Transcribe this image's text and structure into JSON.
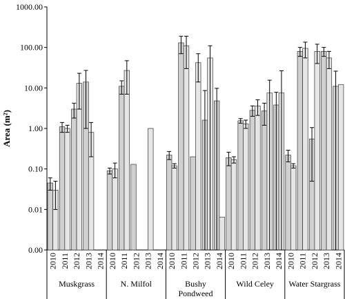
{
  "chart_data": {
    "type": "bar",
    "log_scale": true,
    "y_label": "Area (m²)",
    "ylim": [
      0.001,
      1000
    ],
    "yticks": [
      {
        "value": 0.001,
        "label": "0.00"
      },
      {
        "value": 0.01,
        "label": "0.01"
      },
      {
        "value": 0.1,
        "label": "0.10"
      },
      {
        "value": 1,
        "label": "1.00"
      },
      {
        "value": 10,
        "label": "10.00"
      },
      {
        "value": 100,
        "label": "100.00"
      },
      {
        "value": 1000,
        "label": "1000.00"
      }
    ],
    "groups": [
      {
        "name": "Muskgrass",
        "categories": [
          "2010",
          "2011",
          "2012",
          "2013",
          "2014"
        ],
        "series": [
          {
            "color": "#d0d0d0",
            "values": [
              0.045,
              1.1,
              3.0,
              14,
              null
            ],
            "errors": [
              0.015,
              0.3,
              1.2,
              13,
              null
            ]
          },
          {
            "color": "#e6e6e6",
            "values": [
              0.03,
              1.0,
              13,
              0.8,
              null
            ],
            "errors": [
              0.02,
              0.2,
              10,
              0.6,
              null
            ]
          }
        ]
      },
      {
        "name": "N. Milfol",
        "categories": [
          "2010",
          "2011",
          "2012",
          "2013",
          "2014"
        ],
        "series": [
          {
            "color": "#d0d0d0",
            "values": [
              0.09,
              11,
              0.13,
              null,
              null
            ],
            "errors": [
              0.015,
              4,
              null,
              null,
              null
            ]
          },
          {
            "color": "#e6e6e6",
            "values": [
              0.1,
              27,
              null,
              1.0,
              null
            ],
            "errors": [
              0.04,
              20,
              null,
              null,
              null
            ]
          }
        ]
      },
      {
        "name": "Bushy Pondweed",
        "categories": [
          "2010",
          "2011",
          "2012",
          "2013",
          "2014"
        ],
        "series": [
          {
            "color": "#d0d0d0",
            "values": [
              0.22,
              130,
              0.2,
              1.6,
              4.8
            ],
            "errors": [
              0.05,
              60,
              null,
              7,
              5
            ]
          },
          {
            "color": "#e6e6e6",
            "values": [
              0.12,
              110,
              42,
              55,
              0.0065
            ],
            "errors": [
              0.015,
              80,
              28,
              55,
              null
            ]
          }
        ]
      },
      {
        "name": "Wild Celey",
        "categories": [
          "2010",
          "2011",
          "2012",
          "2013",
          "2014"
        ],
        "series": [
          {
            "color": "#d0d0d0",
            "values": [
              0.19,
              1.55,
              2.8,
              2.7,
              3.8
            ],
            "errors": [
              0.07,
              0.2,
              0.8,
              1.5,
              4
            ]
          },
          {
            "color": "#e6e6e6",
            "values": [
              0.17,
              1.3,
              3.6,
              7.5,
              7.5
            ],
            "errors": [
              0.03,
              0.3,
              1.5,
              8,
              19
            ]
          }
        ]
      },
      {
        "name": "Water Stargrass",
        "categories": [
          "2010",
          "2011",
          "2012",
          "2013",
          "2014"
        ],
        "series": [
          {
            "color": "#d0d0d0",
            "values": [
              0.22,
              80,
              0.55,
              80,
              11
            ],
            "errors": [
              0.07,
              20,
              0.5,
              20,
              15
            ]
          },
          {
            "color": "#e6e6e6",
            "values": [
              0.12,
              95,
              80,
              55,
              12
            ],
            "errors": [
              0.015,
              40,
              40,
              25,
              null
            ]
          }
        ]
      }
    ]
  }
}
